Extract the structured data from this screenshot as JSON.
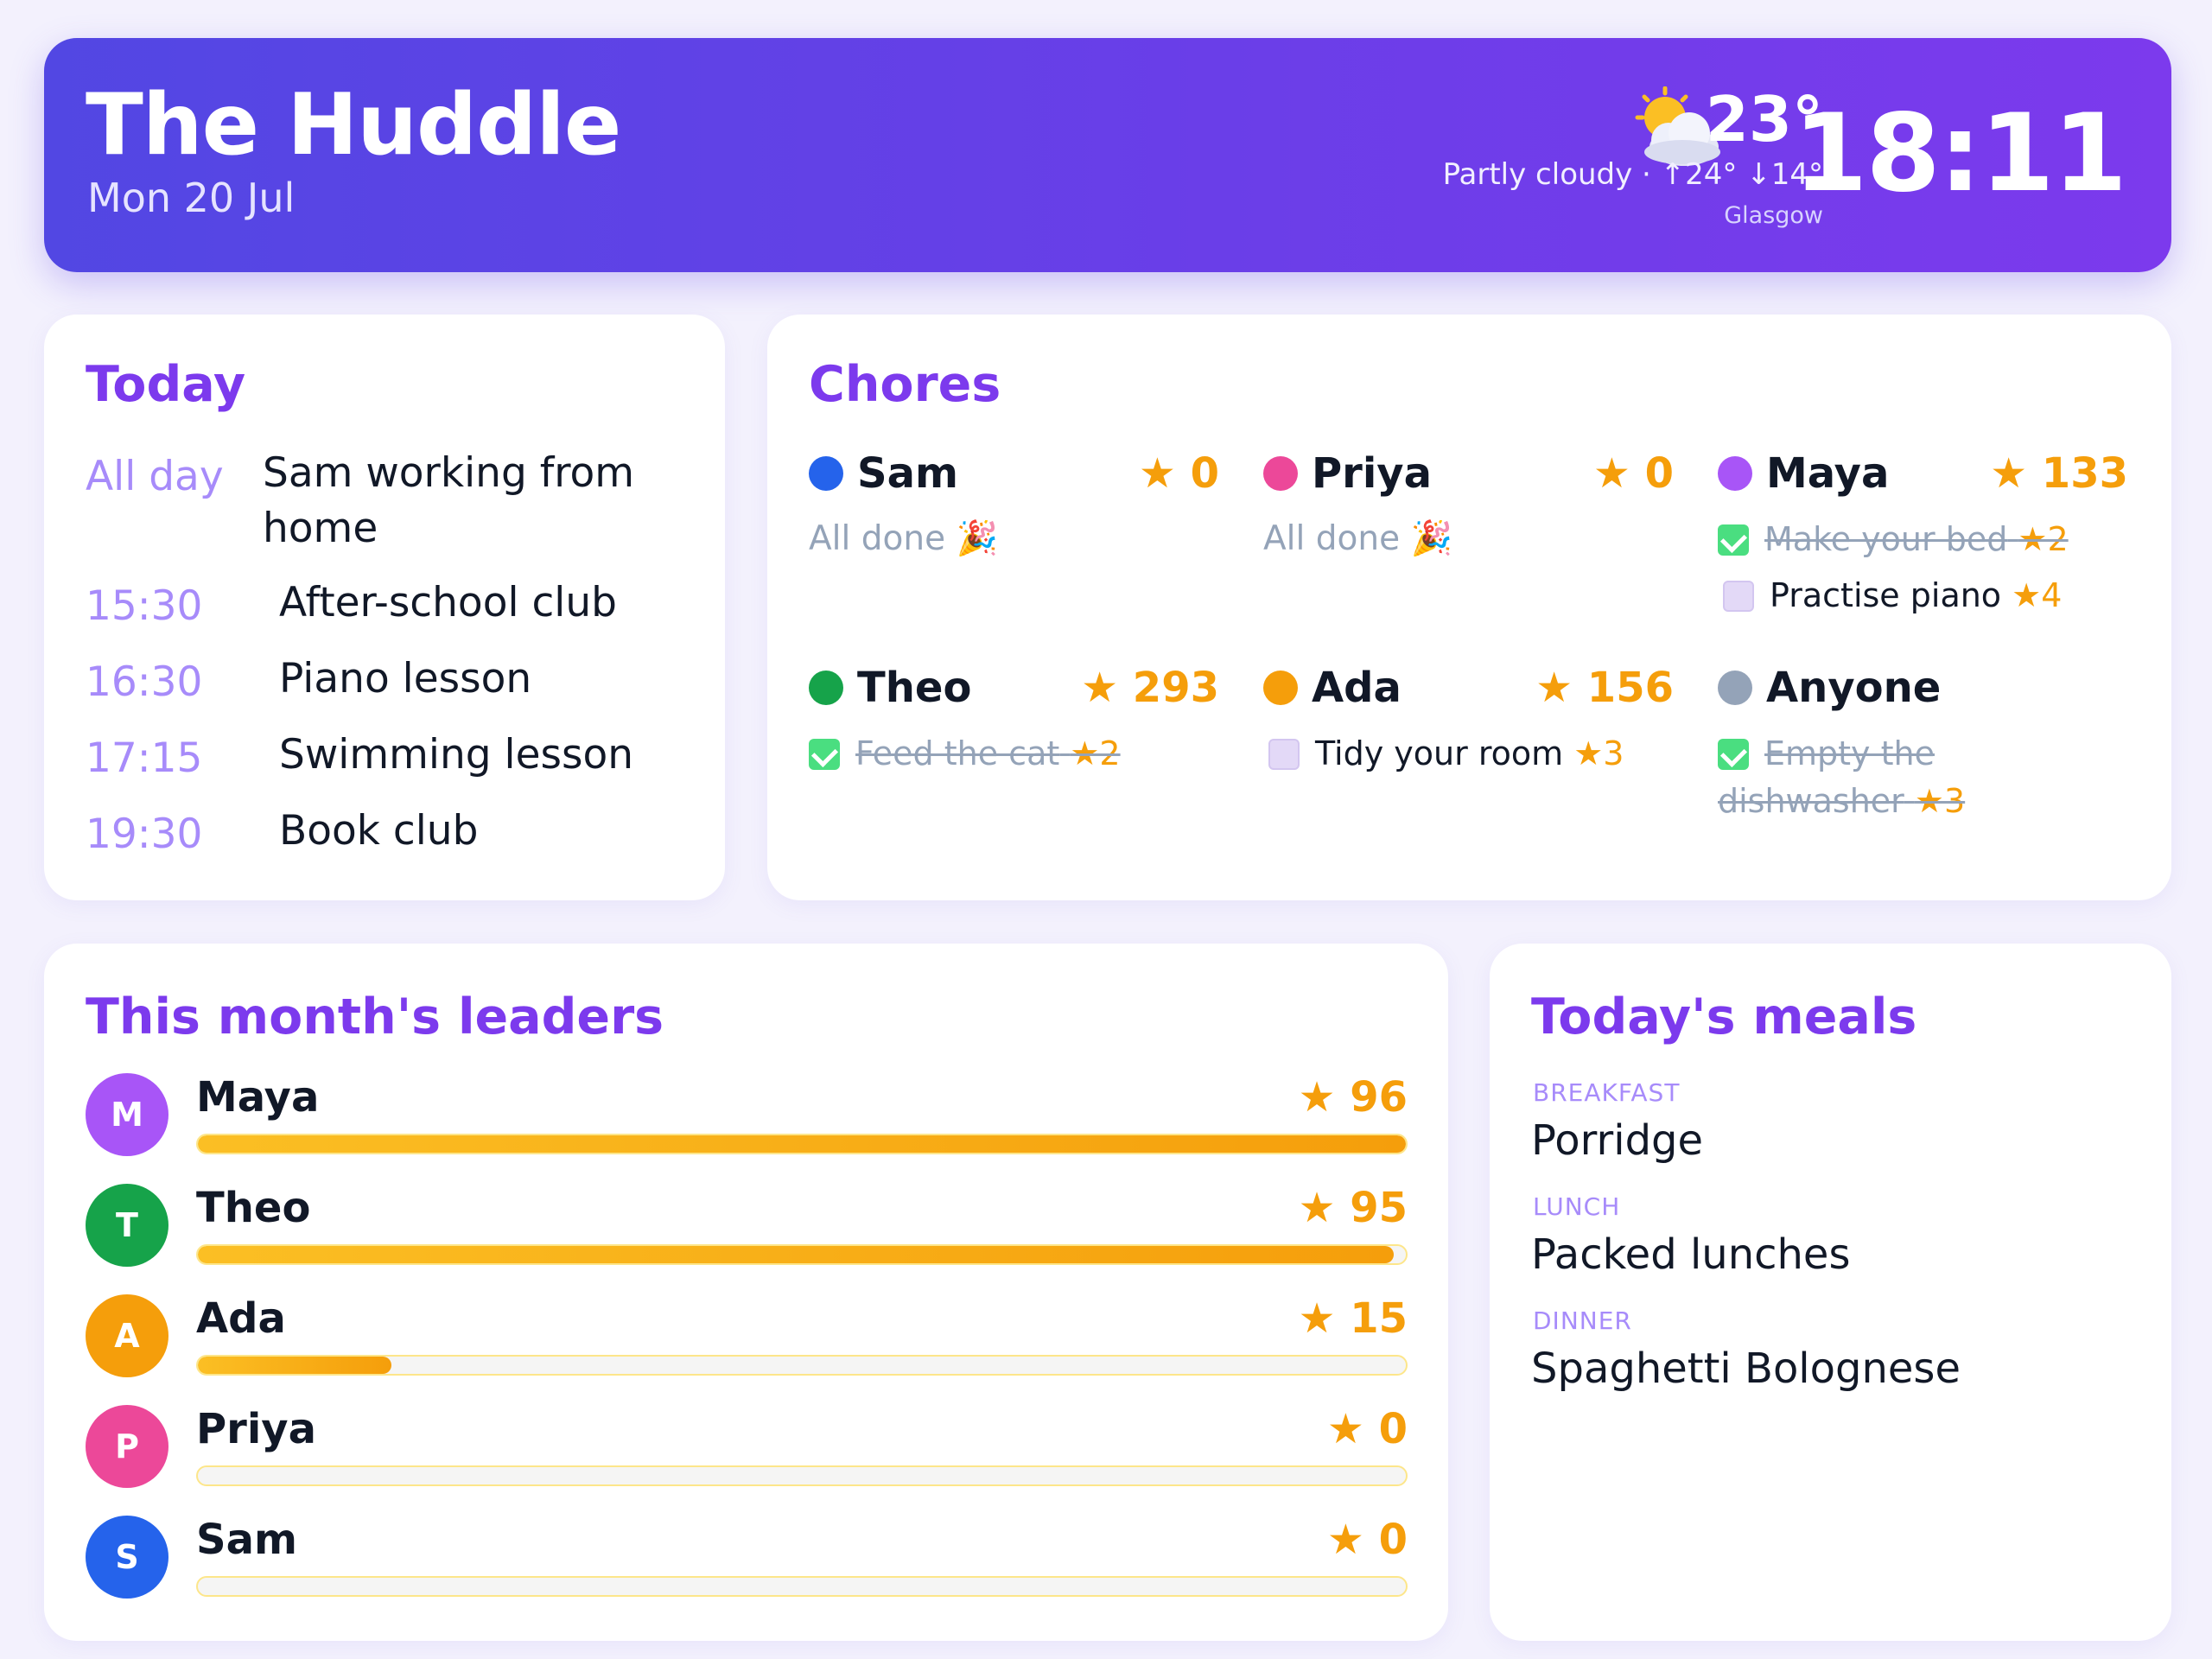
{
  "header": {
    "title": "The Huddle",
    "date": "Mon 20 Jul",
    "weather": {
      "icon": "partly-cloudy-icon",
      "temp": "23°",
      "desc": "Partly cloudy · ↑24° ↓14°",
      "city": "Glasgow"
    },
    "clock": "18:11"
  },
  "today": {
    "title": "Today",
    "events": [
      {
        "time": "All day",
        "title": "Sam working from home"
      },
      {
        "time": "15:30",
        "title": "After-school club"
      },
      {
        "time": "16:30",
        "title": "Piano lesson"
      },
      {
        "time": "17:15",
        "title": "Swimming lesson"
      },
      {
        "time": "19:30",
        "title": "Book club"
      }
    ]
  },
  "chores": {
    "title": "Chores",
    "people": [
      {
        "name": "Sam",
        "stars": "★ 0",
        "color": "#2563eb",
        "done_note": "All done 🎉",
        "tasks": []
      },
      {
        "name": "Priya",
        "stars": "★ 0",
        "color": "#ec4899",
        "done_note": "All done 🎉",
        "tasks": []
      },
      {
        "name": "Maya",
        "stars": "★ 133",
        "color": "#a855f7",
        "done_note": "",
        "tasks": [
          {
            "label": "Make your bed",
            "stars": "★2",
            "done": true
          },
          {
            "label": "Practise piano",
            "stars": "★4",
            "done": false
          }
        ]
      },
      {
        "name": "Theo",
        "stars": "★ 293",
        "color": "#16a34a",
        "done_note": "",
        "tasks": [
          {
            "label": "Feed the cat",
            "stars": "★2",
            "done": true
          }
        ]
      },
      {
        "name": "Ada",
        "stars": "★ 156",
        "color": "#f59e0b",
        "done_note": "",
        "tasks": [
          {
            "label": "Tidy your room",
            "stars": "★3",
            "done": false
          }
        ]
      },
      {
        "name": "Anyone",
        "stars": "",
        "color": "#94a3b8",
        "done_note": "",
        "tasks": [
          {
            "label": "Empty the dishwasher",
            "stars": "★3",
            "done": true
          }
        ]
      }
    ]
  },
  "leaders": {
    "title": "This month's leaders",
    "rows": [
      {
        "initial": "M",
        "name": "Maya",
        "stars": "★ 96",
        "progress": 1.0,
        "color": "#a855f7"
      },
      {
        "initial": "T",
        "name": "Theo",
        "stars": "★ 95",
        "progress": 0.99,
        "color": "#16a34a"
      },
      {
        "initial": "A",
        "name": "Ada",
        "stars": "★ 15",
        "progress": 0.16,
        "color": "#f59e0b"
      },
      {
        "initial": "P",
        "name": "Priya",
        "stars": "★ 0",
        "progress": 0.0,
        "color": "#ec4899"
      },
      {
        "initial": "S",
        "name": "Sam",
        "stars": "★ 0",
        "progress": 0.0,
        "color": "#2563eb"
      }
    ]
  },
  "meals": {
    "title": "Today's meals",
    "breakfast_label": "BREAKFAST",
    "breakfast": "Porridge",
    "lunch_label": "LUNCH",
    "lunch": "Packed lunches",
    "dinner_label": "DINNER",
    "dinner": "Spaghetti Bolognese"
  }
}
